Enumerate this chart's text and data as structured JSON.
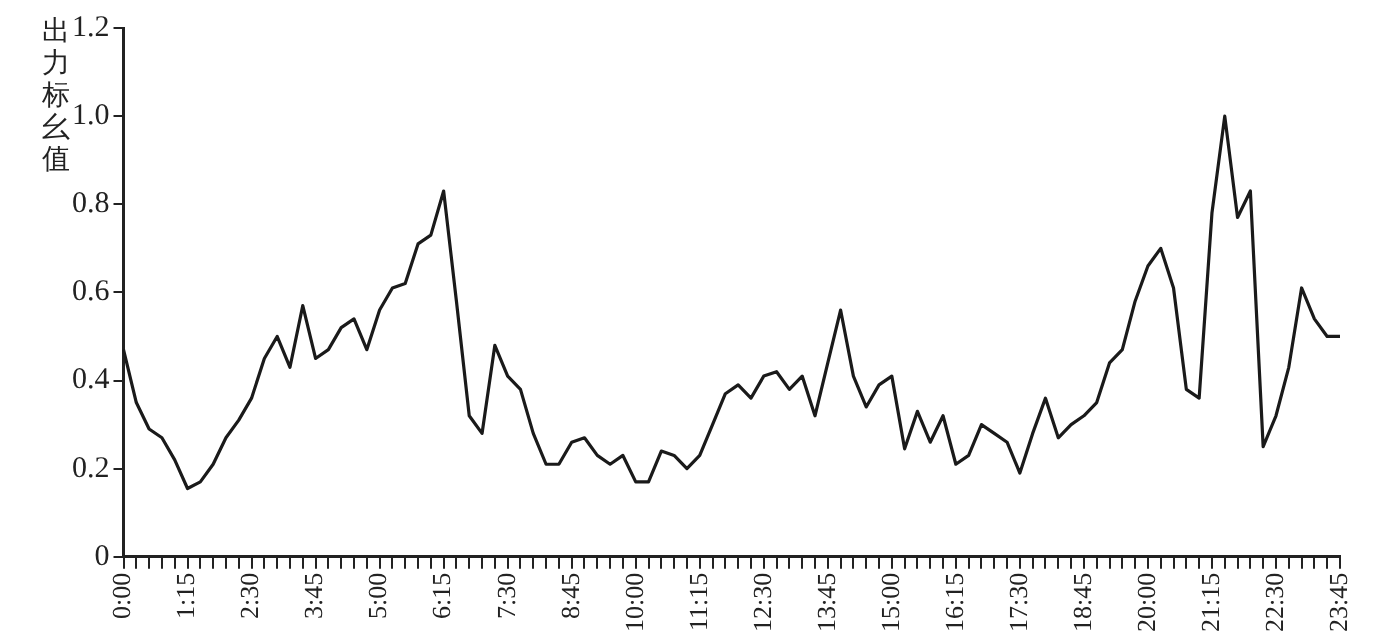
{
  "chart_data": {
    "type": "line",
    "ylabel": "出力标幺值",
    "categories": [
      "0:00",
      null,
      null,
      null,
      null,
      "1:15",
      null,
      null,
      null,
      null,
      "2:30",
      null,
      null,
      null,
      null,
      "3:45",
      null,
      null,
      null,
      null,
      "5:00",
      null,
      null,
      null,
      null,
      "6:15",
      null,
      null,
      null,
      null,
      "7:30",
      null,
      null,
      null,
      null,
      "8:45",
      null,
      null,
      null,
      null,
      "10:00",
      null,
      null,
      null,
      null,
      "11:15",
      null,
      null,
      null,
      null,
      "12:30",
      null,
      null,
      null,
      null,
      "13:45",
      null,
      null,
      null,
      null,
      "15:00",
      null,
      null,
      null,
      null,
      "16:15",
      null,
      null,
      null,
      null,
      "17:30",
      null,
      null,
      null,
      null,
      "18:45",
      null,
      null,
      null,
      null,
      "20:00",
      null,
      null,
      null,
      null,
      "21:15",
      null,
      null,
      null,
      null,
      "22:30",
      null,
      null,
      null,
      null,
      "23:45"
    ],
    "series": [
      {
        "color": "#1a1a1a",
        "values": [
          0.47,
          0.35,
          0.29,
          0.27,
          0.22,
          0.155,
          0.17,
          0.21,
          0.27,
          0.31,
          0.36,
          0.45,
          0.5,
          0.43,
          0.57,
          0.45,
          0.47,
          0.52,
          0.54,
          0.47,
          0.56,
          0.61,
          0.62,
          0.71,
          0.73,
          0.83,
          0.58,
          0.32,
          0.28,
          0.48,
          0.41,
          0.38,
          0.28,
          0.21,
          0.21,
          0.26,
          0.27,
          0.23,
          0.21,
          0.23,
          0.17,
          0.17,
          0.24,
          0.23,
          0.2,
          0.23,
          0.3,
          0.37,
          0.39,
          0.36,
          0.41,
          0.42,
          0.38,
          0.41,
          0.32,
          0.44,
          0.56,
          0.41,
          0.34,
          0.39,
          0.41,
          0.245,
          0.33,
          0.26,
          0.32,
          0.21,
          0.23,
          0.3,
          0.28,
          0.26,
          0.19,
          0.28,
          0.36,
          0.27,
          0.3,
          0.32,
          0.35,
          0.44,
          0.47,
          0.58,
          0.66,
          0.7,
          0.61,
          0.38,
          0.36,
          0.78,
          1.0,
          0.77,
          0.83,
          0.25,
          0.32,
          0.43,
          0.61,
          0.54,
          0.5,
          0.5
        ]
      }
    ],
    "ylim": [
      0,
      1.2
    ],
    "yticks": [
      0,
      {
        "value": 0.2,
        "label": "0.2"
      },
      {
        "value": 0.4,
        "label": "0.4"
      },
      {
        "value": 0.6,
        "label": "0.6"
      },
      {
        "value": 0.8,
        "label": "0.8"
      },
      {
        "value": 1,
        "label": "1.0"
      },
      {
        "value": 1.2,
        "label": "1.2"
      }
    ],
    "grid": false,
    "legend": false,
    "marker": "none",
    "line_style": "solid"
  }
}
